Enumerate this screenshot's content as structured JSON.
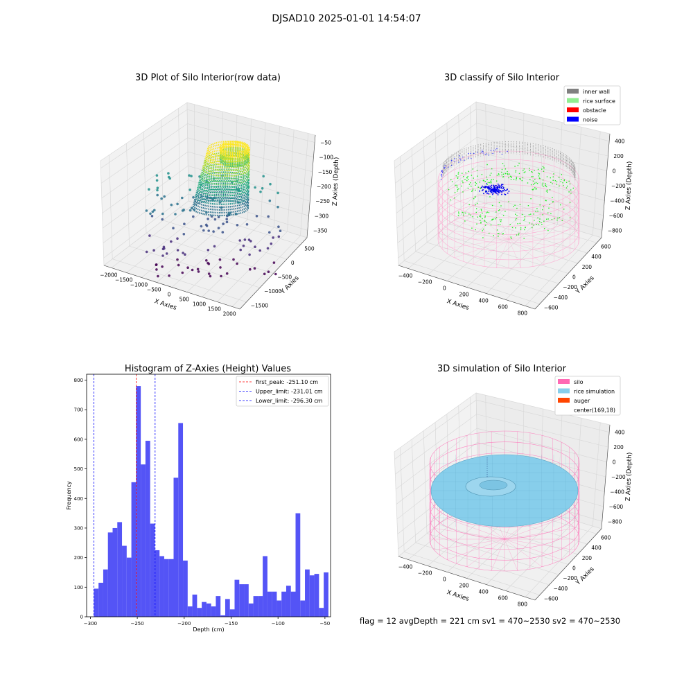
{
  "figure": {
    "suptitle": "DJSAD10 2025-01-01 14:54:07",
    "status_line": "flag = 12  avgDepth = 221 cm  sv1 = 470~2530  sv2 = 470~2530"
  },
  "panels": {
    "raw": {
      "title": "3D Plot of Silo Interior(row data)",
      "xlabel": "X Axies",
      "ylabel": "Y Axies",
      "zlabel": "Z Axies (Depth)",
      "xticks": [
        "−2000",
        "−1500",
        "−1000",
        "−500",
        "0",
        "500",
        "1000",
        "1500",
        "2000"
      ],
      "yticks": [
        "−1500",
        "−1000",
        "−500",
        "0",
        "500"
      ],
      "zticks": [
        "−50",
        "−100",
        "−150",
        "−200",
        "−250",
        "−300",
        "−350"
      ]
    },
    "classify": {
      "title": "3D classify of Silo Interior",
      "xlabel": "X Axies",
      "ylabel": "Y Axies",
      "zlabel": "Z Axies (Depth)",
      "xticks": [
        "−400",
        "−200",
        "0",
        "200",
        "400",
        "600",
        "800"
      ],
      "yticks": [
        "−600",
        "−400",
        "−200",
        "0",
        "200",
        "400",
        "600"
      ],
      "zticks": [
        "400",
        "200",
        "0",
        "−200",
        "−400",
        "−600",
        "−800"
      ],
      "legend": [
        {
          "label": "inner wall",
          "color": "#808080"
        },
        {
          "label": "rice surface",
          "color": "#90ee90"
        },
        {
          "label": "obstacle",
          "color": "#ff0000"
        },
        {
          "label": "noise",
          "color": "#0000ff"
        }
      ]
    },
    "simulation": {
      "title": "3D simulation of Silo Interior",
      "xlabel": "X Axies",
      "ylabel": "Y Axies",
      "zlabel": "Z Axies (Depth)",
      "xticks": [
        "−400",
        "−200",
        "0",
        "200",
        "400",
        "600",
        "800"
      ],
      "yticks": [
        "−600",
        "−400",
        "−200",
        "0",
        "200",
        "400",
        "600"
      ],
      "zticks": [
        "400",
        "200",
        "0",
        "−200",
        "−400",
        "−600",
        "−800"
      ],
      "legend": [
        {
          "label": "silo",
          "color": "#ff69b4"
        },
        {
          "label": "rice simulation",
          "color": "#87ceeb"
        },
        {
          "label": "auger",
          "color": "#ff4500"
        },
        {
          "label": "center(169,18)",
          "color": ""
        }
      ]
    }
  },
  "chart_data": {
    "type": "bar",
    "title": "Histogram of Z-Axies (Height) Values",
    "xlabel": "Depth (cm)",
    "ylabel": "Frequency",
    "xlim": [
      -304,
      -44
    ],
    "ylim": [
      0,
      820
    ],
    "xticks": [
      -300,
      -250,
      -200,
      -150,
      -100,
      -50
    ],
    "yticks": [
      0,
      100,
      200,
      300,
      400,
      500,
      600,
      700,
      800
    ],
    "bin_start": -296.3,
    "bin_width": 5.0,
    "values": [
      95,
      115,
      160,
      285,
      300,
      320,
      240,
      200,
      455,
      780,
      515,
      595,
      315,
      225,
      205,
      195,
      195,
      470,
      655,
      190,
      35,
      75,
      30,
      50,
      45,
      35,
      70,
      5,
      60,
      25,
      125,
      110,
      110,
      45,
      70,
      70,
      205,
      85,
      85,
      55,
      85,
      105,
      85,
      350,
      55,
      160,
      140,
      145,
      30,
      150
    ],
    "lines": [
      {
        "label": "first_peak: -251.10 cm",
        "x": -251.1,
        "color": "#ff0000"
      },
      {
        "label": "Upper_limit: -231.01 cm",
        "x": -231.01,
        "color": "#0000ff"
      },
      {
        "label": "Lower_limit: -296.30 cm",
        "x": -296.3,
        "color": "#0000ff"
      }
    ],
    "bar_color": "#4b4bf5",
    "legend_position": "upper right"
  }
}
